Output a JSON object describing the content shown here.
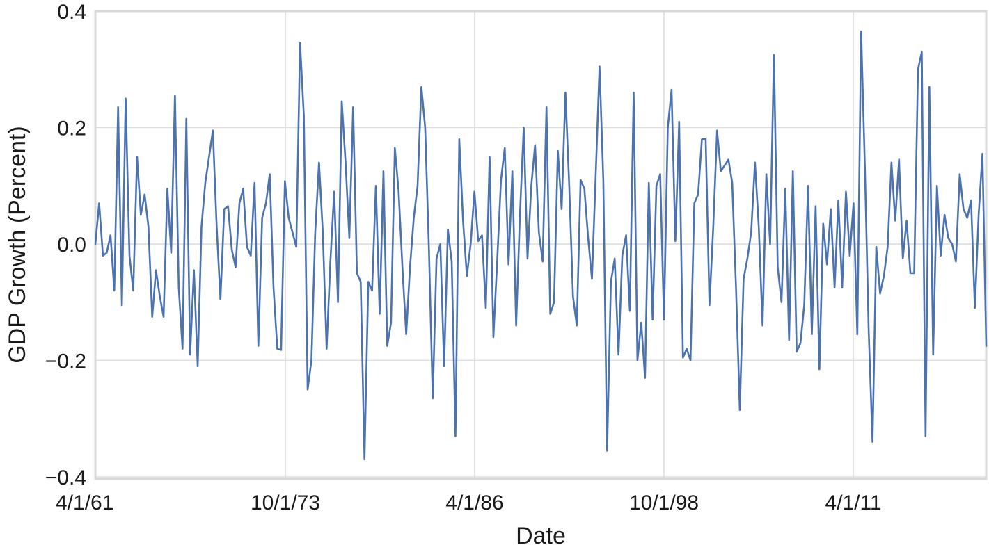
{
  "chart_data": {
    "type": "line",
    "title": "",
    "xlabel": "Date",
    "ylabel": "GDP Growth (Percent)",
    "x_tick_labels": [
      "4/1/61",
      "10/1/73",
      "4/1/86",
      "10/1/98",
      "4/1/11"
    ],
    "y_tick_labels": [
      "−0.4",
      "−0.2",
      "0.0",
      "0.2",
      "0.4"
    ],
    "y_ticks": [
      -0.4,
      -0.2,
      0.0,
      0.2,
      0.4
    ],
    "ylim": [
      -0.4,
      0.4
    ],
    "grid": true,
    "legend": "none",
    "line_color": "#4c72b0",
    "series": [
      {
        "values": [
          0.0,
          0.07,
          -0.02,
          -0.015,
          0.015,
          -0.08,
          0.235,
          -0.105,
          0.25,
          -0.02,
          -0.08,
          0.15,
          0.05,
          0.085,
          0.03,
          -0.125,
          -0.045,
          -0.09,
          -0.125,
          0.095,
          -0.015,
          0.255,
          -0.075,
          -0.18,
          0.215,
          -0.19,
          -0.045,
          -0.21,
          0.03,
          0.105,
          0.15,
          0.195,
          0.03,
          -0.095,
          0.06,
          0.065,
          -0.01,
          -0.04,
          0.07,
          0.095,
          -0.005,
          -0.02,
          0.105,
          -0.175,
          0.045,
          0.07,
          0.12,
          -0.075,
          -0.18,
          -0.182,
          0.108,
          0.045,
          0.02,
          -0.005,
          0.345,
          0.22,
          -0.25,
          -0.2,
          0.02,
          0.14,
          0.02,
          -0.18,
          -0.03,
          0.09,
          -0.1,
          0.245,
          0.14,
          0.01,
          0.235,
          -0.05,
          -0.065,
          -0.37,
          -0.065,
          -0.08,
          0.1,
          -0.12,
          0.125,
          -0.175,
          -0.135,
          0.165,
          0.09,
          -0.04,
          -0.155,
          -0.04,
          0.045,
          0.1,
          0.27,
          0.2,
          -0.01,
          -0.265,
          -0.025,
          0.0,
          -0.21,
          0.025,
          -0.03,
          -0.33,
          0.18,
          0.04,
          -0.055,
          0.0,
          0.09,
          0.005,
          0.015,
          -0.11,
          0.15,
          -0.16,
          -0.03,
          0.11,
          0.165,
          -0.035,
          0.125,
          -0.14,
          0.05,
          0.2,
          -0.025,
          0.1,
          0.17,
          0.02,
          -0.03,
          0.235,
          -0.12,
          -0.1,
          0.16,
          0.06,
          0.26,
          0.1,
          -0.09,
          -0.14,
          0.11,
          0.095,
          0.01,
          -0.06,
          0.12,
          0.305,
          0.11,
          -0.355,
          -0.065,
          -0.025,
          -0.19,
          -0.02,
          0.015,
          -0.115,
          0.26,
          -0.2,
          -0.135,
          -0.23,
          0.105,
          -0.13,
          0.1,
          0.12,
          -0.13,
          0.2,
          0.265,
          0.005,
          0.21,
          -0.195,
          -0.18,
          -0.2,
          0.07,
          0.085,
          0.18,
          0.18,
          -0.105,
          0.03,
          0.195,
          0.125,
          0.135,
          0.145,
          0.105,
          -0.075,
          -0.285,
          -0.06,
          -0.025,
          0.02,
          0.14,
          0.03,
          -0.14,
          0.12,
          0.0,
          0.325,
          -0.04,
          -0.1,
          0.095,
          -0.165,
          0.125,
          -0.185,
          -0.17,
          -0.105,
          0.1,
          -0.155,
          0.065,
          -0.215,
          0.035,
          -0.035,
          0.06,
          -0.075,
          0.075,
          -0.075,
          0.09,
          -0.02,
          0.07,
          -0.155,
          0.365,
          0.13,
          -0.15,
          -0.34,
          -0.005,
          -0.085,
          -0.055,
          -0.005,
          0.14,
          0.04,
          0.145,
          -0.025,
          0.04,
          -0.05,
          -0.05,
          0.3,
          0.33,
          -0.33,
          0.27,
          -0.19,
          0.1,
          -0.02,
          0.05,
          0.01,
          0.0,
          -0.03,
          0.12,
          0.06,
          0.045,
          0.075,
          -0.11,
          0.05,
          0.155,
          -0.175
        ]
      }
    ]
  }
}
